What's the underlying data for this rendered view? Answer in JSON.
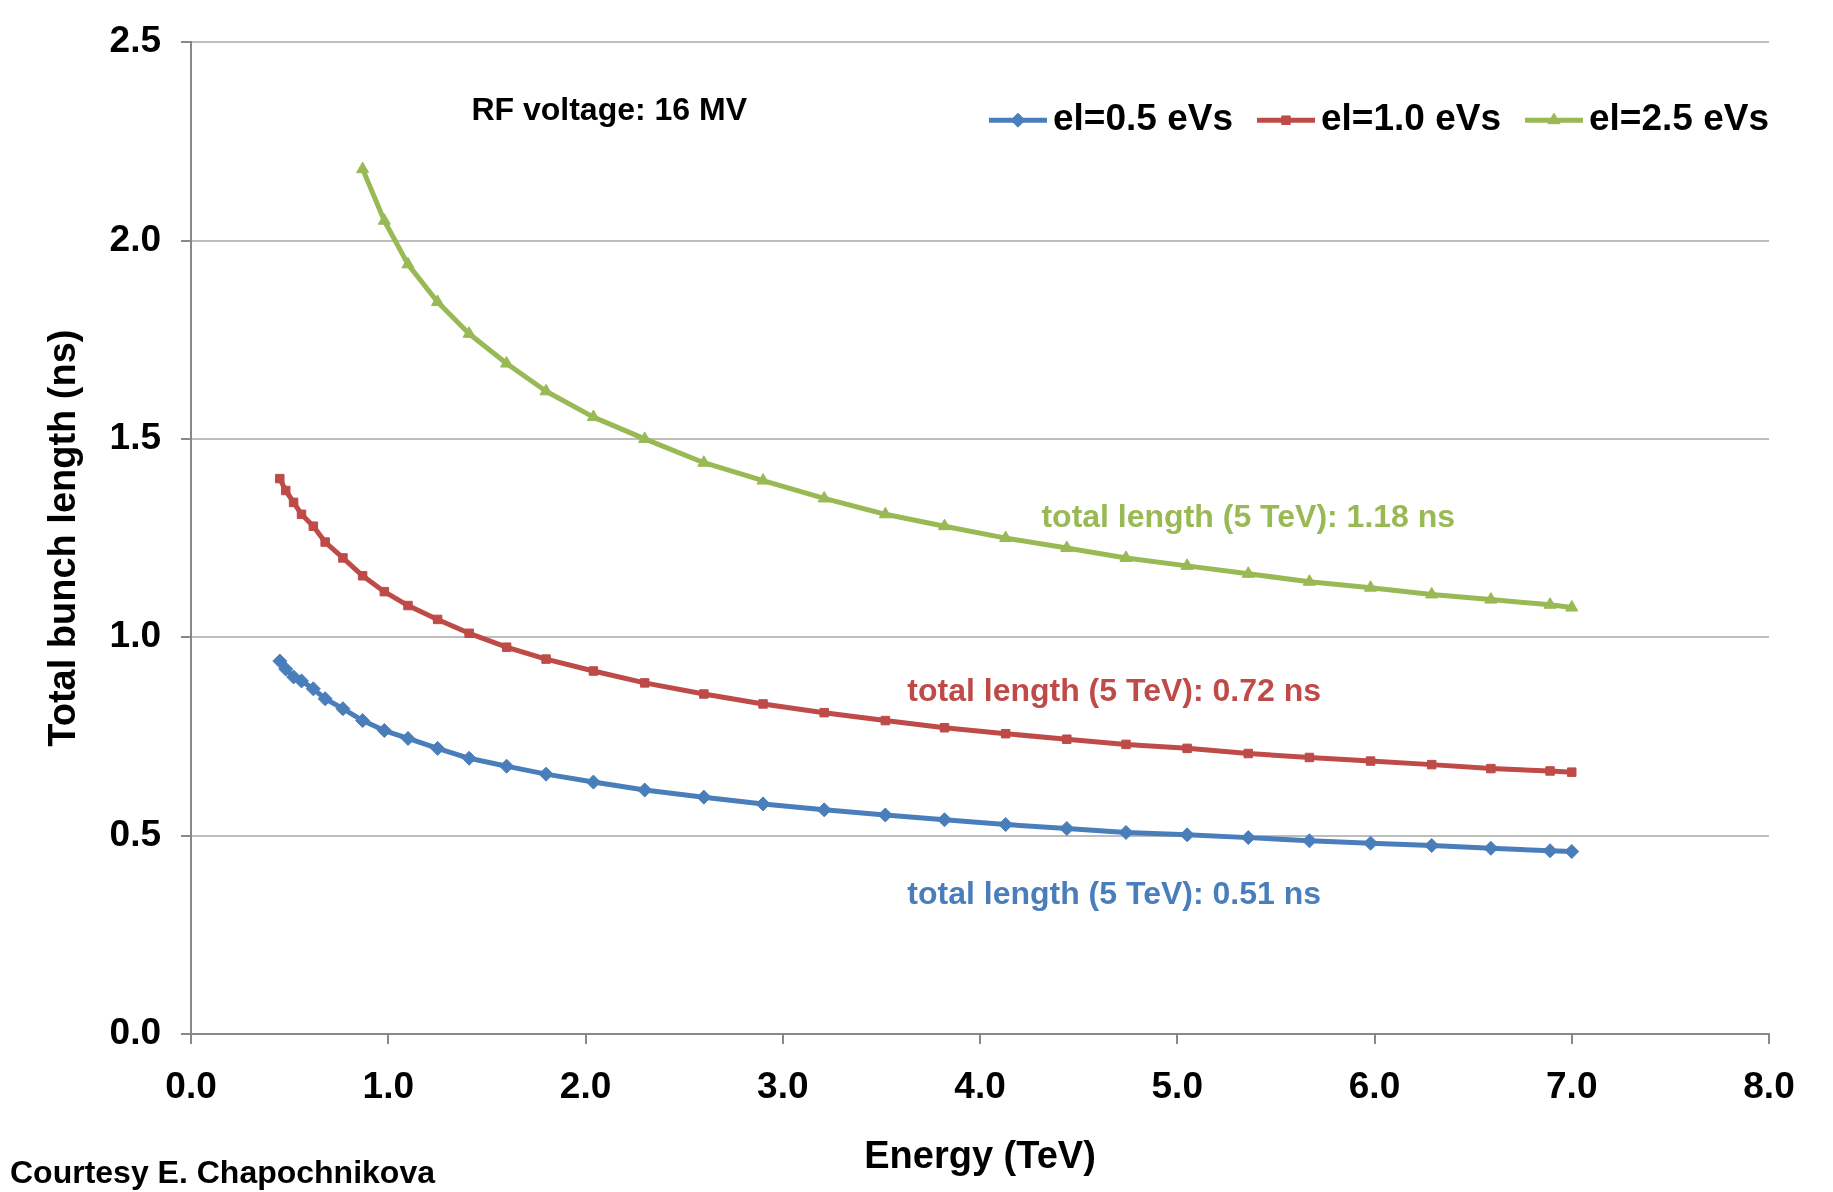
{
  "chart_data": {
    "type": "line",
    "xlabel": "Energy (TeV)",
    "ylabel": "Total bunch length (ns)",
    "xlim": [
      0,
      8
    ],
    "ylim": [
      0,
      2.5
    ],
    "xticks": [
      {
        "value": 0,
        "label": "0.0"
      },
      {
        "value": 1,
        "label": "1.0"
      },
      {
        "value": 2,
        "label": "2.0"
      },
      {
        "value": 3,
        "label": "3.0"
      },
      {
        "value": 4,
        "label": "4.0"
      },
      {
        "value": 5,
        "label": "5.0"
      },
      {
        "value": 6,
        "label": "6.0"
      },
      {
        "value": 7,
        "label": "7.0"
      },
      {
        "value": 8,
        "label": "8.0"
      }
    ],
    "yticks": [
      {
        "value": 0,
        "label": "0.0"
      },
      {
        "value": 0.5,
        "label": "0.5"
      },
      {
        "value": 1,
        "label": "1.0"
      },
      {
        "value": 1.5,
        "label": "1.5"
      },
      {
        "value": 2,
        "label": "2.0"
      },
      {
        "value": 2.5,
        "label": "2.5"
      }
    ],
    "grid": "y",
    "legend": "top right",
    "line_style": "solid",
    "series": [
      {
        "name": "el=0.5 eVs",
        "color": "#4a7ebb",
        "marker": "diamond",
        "x": [
          0.45,
          0.48,
          0.52,
          0.56,
          0.62,
          0.68,
          0.77,
          0.87,
          0.98,
          1.1,
          1.25,
          1.41,
          1.6,
          1.8,
          2.04,
          2.3,
          2.6,
          2.9,
          3.21,
          3.52,
          3.82,
          4.13,
          4.44,
          4.74,
          5.05,
          5.36,
          5.67,
          5.98,
          6.29,
          6.59,
          6.89,
          7.0
        ],
        "values": [
          0.94,
          0.92,
          0.9,
          0.89,
          0.87,
          0.845,
          0.82,
          0.79,
          0.765,
          0.745,
          0.72,
          0.695,
          0.675,
          0.655,
          0.635,
          0.615,
          0.597,
          0.58,
          0.565,
          0.552,
          0.54,
          0.528,
          0.518,
          0.508,
          0.502,
          0.495,
          0.487,
          0.481,
          0.475,
          0.468,
          0.462,
          0.46
        ]
      },
      {
        "name": "el=1.0 eVs",
        "color": "#be4b48",
        "marker": "square",
        "x": [
          0.45,
          0.48,
          0.52,
          0.56,
          0.62,
          0.68,
          0.77,
          0.87,
          0.98,
          1.1,
          1.25,
          1.41,
          1.6,
          1.8,
          2.04,
          2.3,
          2.6,
          2.9,
          3.21,
          3.52,
          3.82,
          4.13,
          4.44,
          4.74,
          5.05,
          5.36,
          5.67,
          5.98,
          6.29,
          6.59,
          6.89,
          7.0
        ],
        "values": [
          1.4,
          1.37,
          1.34,
          1.31,
          1.28,
          1.24,
          1.2,
          1.155,
          1.115,
          1.08,
          1.045,
          1.01,
          0.975,
          0.945,
          0.915,
          0.885,
          0.857,
          0.832,
          0.81,
          0.79,
          0.772,
          0.757,
          0.743,
          0.73,
          0.72,
          0.707,
          0.697,
          0.688,
          0.679,
          0.669,
          0.663,
          0.66
        ]
      },
      {
        "name": "el=2.5 eVs",
        "color": "#98b954",
        "marker": "triangle",
        "x": [
          0.87,
          0.98,
          1.1,
          1.25,
          1.41,
          1.6,
          1.8,
          2.04,
          2.3,
          2.6,
          2.9,
          3.21,
          3.52,
          3.82,
          4.13,
          4.44,
          4.74,
          5.05,
          5.36,
          5.67,
          5.98,
          6.29,
          6.59,
          6.89,
          7.0
        ],
        "values": [
          2.18,
          2.05,
          1.94,
          1.845,
          1.765,
          1.69,
          1.62,
          1.555,
          1.5,
          1.44,
          1.395,
          1.35,
          1.31,
          1.28,
          1.25,
          1.225,
          1.2,
          1.18,
          1.16,
          1.14,
          1.125,
          1.108,
          1.095,
          1.082,
          1.075
        ]
      }
    ],
    "annotations": [
      "total length (5 TeV): 0.51 ns",
      "total length (5 TeV): 0.72 ns",
      "total length (5 TeV): 1.18 ns",
      "RF voltage: 16 MV",
      "Courtesy E. Chapochnikova"
    ]
  }
}
